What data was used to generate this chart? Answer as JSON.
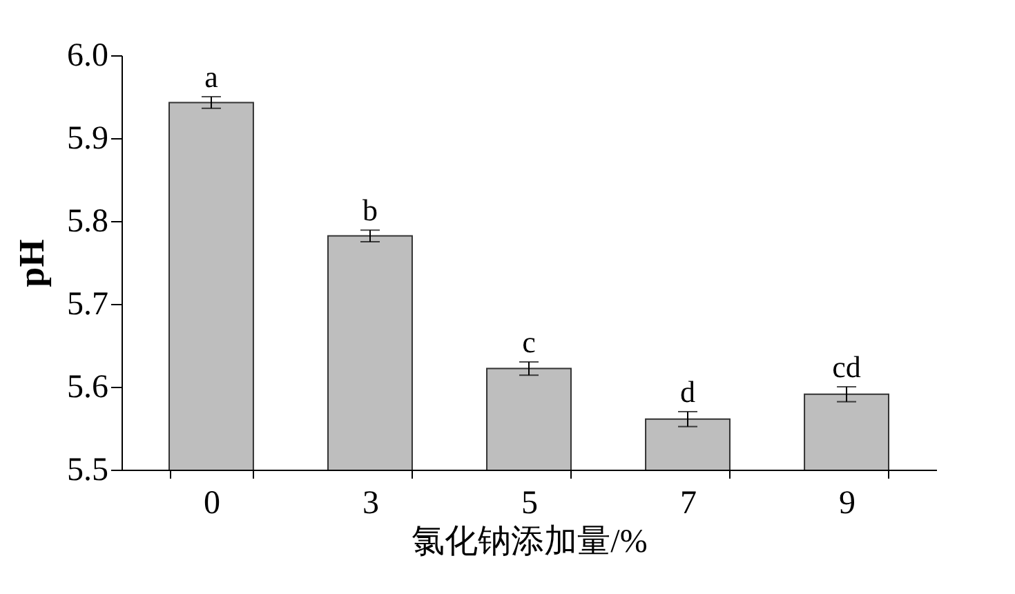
{
  "chart_data": {
    "type": "bar",
    "xlabel": "氯化钠添加量/%",
    "ylabel": "pH",
    "categories": [
      "0",
      "3",
      "5",
      "7",
      "9"
    ],
    "values": [
      5.943,
      5.782,
      5.622,
      5.561,
      5.591
    ],
    "errors": [
      0.007,
      0.007,
      0.008,
      0.009,
      0.009
    ],
    "color": "#bebebe",
    "ylim": [
      5.5,
      6.0
    ],
    "yticks": [
      5.5,
      5.6,
      5.7,
      5.8,
      5.9,
      {
        "value": 6,
        "label": "6.0"
      }
    ],
    "grid": false,
    "annotations": [
      {
        "text": "a",
        "x": "0",
        "y": 5.95
      },
      {
        "text": "b",
        "x": "3",
        "y": 5.789
      },
      {
        "text": "c",
        "x": "5",
        "y": 5.63
      },
      {
        "text": "d",
        "x": "7",
        "y": 5.57
      },
      {
        "text": "cd",
        "x": "9",
        "y": 5.6
      }
    ]
  }
}
